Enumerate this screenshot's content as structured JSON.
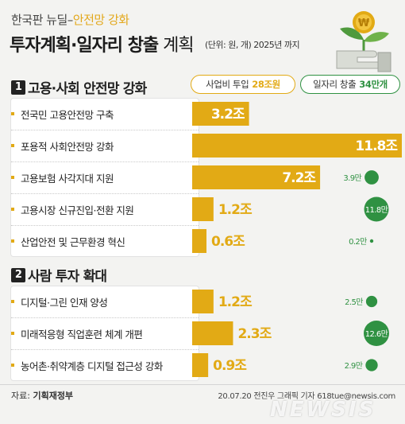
{
  "header": {
    "subtitle_main": "한국판 뉴딜–",
    "subtitle_accent": "안전망 강화",
    "title_bold": "투자계획·일자리 창출",
    "title_rest": " 계획",
    "unit": "(단위: 원, 개) 2025년 까지"
  },
  "legend": {
    "budget_label": "사업비 투입",
    "budget_value": "28조원",
    "jobs_label": "일자리 창출",
    "jobs_value": "34만개"
  },
  "sections": [
    {
      "number": "1",
      "title": "고용·사회 안전망 강화"
    },
    {
      "number": "2",
      "title": "사람 투자 확대"
    }
  ],
  "colors": {
    "bar": "#e2aa15",
    "jobs": "#2f9142",
    "panel": "#ffffff"
  },
  "icon": "money-plant-icon",
  "chart_data": {
    "type": "bar",
    "unit": "조",
    "jobs_unit": "만",
    "categories": [
      "전국민 고용안전망 구축",
      "포용적 사회안전망 강화",
      "고용보험 사각지대 지원",
      "고용시장 신규진입·전환 지원",
      "산업안전 및 근무환경 혁신",
      "디지털·그린 인재 양성",
      "미래적응형 직업훈련 체계 개편",
      "농어촌·취약계층 디지털 접근성 강화"
    ],
    "series": [
      {
        "name": "사업비 투입",
        "values": [
          3.2,
          11.8,
          7.2,
          1.2,
          0.6,
          1.2,
          2.3,
          0.9
        ]
      },
      {
        "name": "일자리 창출",
        "values": [
          null,
          null,
          3.9,
          11.8,
          0.2,
          2.5,
          12.6,
          2.9
        ]
      }
    ],
    "value_labels": [
      "3.2조",
      "11.8조",
      "7.2조",
      "1.2조",
      "0.6조",
      "1.2조",
      "2.3조",
      "0.9조"
    ],
    "job_labels": [
      "",
      "",
      "3.9만",
      "11.8만",
      "0.2만",
      "2.5만",
      "12.6만",
      "2.9만"
    ],
    "section_of_category": [
      0,
      0,
      0,
      0,
      0,
      1,
      1,
      1
    ]
  },
  "footer": {
    "source_prefix": "자료: ",
    "source_name": "기획재정부",
    "credit": "20.07.20 전진우 그래픽 기자 618tue@newsis.com",
    "watermark": "NEWSIS"
  }
}
